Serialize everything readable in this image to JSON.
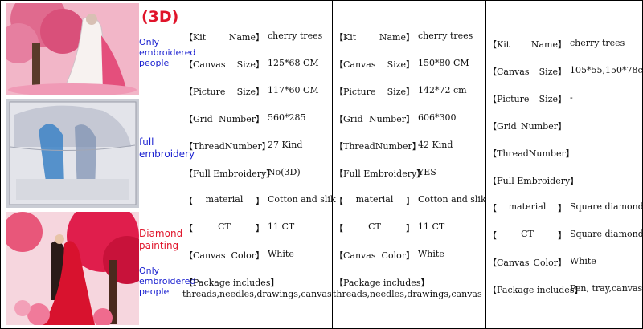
{
  "captions": {
    "img1": {
      "tag": "(3D)",
      "lines": [
        "Only",
        "embroidered",
        "people"
      ]
    },
    "img2": {
      "lines": [
        "full",
        "embroidery"
      ]
    },
    "img3": {
      "lines_red": [
        "Diamond",
        "painting"
      ],
      "lines_blue": [
        "Only",
        "embroidered",
        "people"
      ]
    }
  },
  "specs": [
    {
      "rows": [
        {
          "open": "【Kit",
          "close": "Name】",
          "value": "cherry trees"
        },
        {
          "open": "【Canvas",
          "close": "Size】",
          "value": "125*68 CM"
        },
        {
          "open": "【Picture",
          "close": "Size】",
          "value": "117*60 CM"
        },
        {
          "open": "【Grid",
          "close": "Number】",
          "value": "560*285"
        },
        {
          "open": "【Thread",
          "close": "Number】",
          "value": "27 Kind"
        },
        {
          "open": "【Full Embroidery】",
          "close": "",
          "value": "No(3D)"
        },
        {
          "open": "【",
          "mid": "material",
          "close": "】",
          "value": "Cotton and slik"
        },
        {
          "open": "【",
          "mid": "CT",
          "close": "】",
          "value": "11 CT"
        },
        {
          "open": "【Canvas",
          "close": "Color】",
          "value": "White"
        },
        {
          "open": "【Package includes】",
          "close": "",
          "value": ""
        }
      ],
      "package": "threads,needles,drawings,canvas"
    },
    {
      "rows": [
        {
          "open": "【Kit",
          "close": "Name】",
          "value": "cherry trees"
        },
        {
          "open": "【Canvas",
          "close": "Size】",
          "value": "150*80 CM"
        },
        {
          "open": "【Picture",
          "close": "Size】",
          "value": "142*72 cm"
        },
        {
          "open": "【Grid",
          "close": "Number】",
          "value": "606*300"
        },
        {
          "open": "【Thread",
          "close": "Number】",
          "value": "42 Kind"
        },
        {
          "open": "【Full Embroidery】",
          "close": "",
          "value": "YES"
        },
        {
          "open": "【",
          "mid": "material",
          "close": "】",
          "value": "Cotton and slik"
        },
        {
          "open": "【",
          "mid": "CT",
          "close": "】",
          "value": "11 CT"
        },
        {
          "open": "【Canvas",
          "close": "Color】",
          "value": "White"
        },
        {
          "open": "【Package includes】",
          "close": "",
          "value": ""
        }
      ],
      "package": "threads,needles,drawings,canvas"
    },
    {
      "rows": [
        {
          "open": "【Kit",
          "close": "Name】",
          "value": "cherry trees"
        },
        {
          "open": "【Canvas",
          "close": "Size】",
          "value": "105*55,150*78cm"
        },
        {
          "open": "【Picture",
          "close": "Size】",
          "value": "-"
        },
        {
          "open": "【Grid",
          "close": "Number】",
          "value": ""
        },
        {
          "open": "【Thread",
          "close": "Number】",
          "value": ""
        },
        {
          "open": "【Full Embroidery】",
          "close": "",
          "value": ""
        },
        {
          "open": "【",
          "mid": "material",
          "close": "】",
          "value": "Square diamond"
        },
        {
          "open": "【",
          "mid": "CT",
          "close": "】",
          "value": "Square diamond"
        },
        {
          "open": "【Canvas",
          "close": "Color】",
          "value": "White"
        },
        {
          "open": "【Package includes】",
          "close": "",
          "value": "Pen, tray,canvas"
        }
      ],
      "package": ""
    }
  ]
}
